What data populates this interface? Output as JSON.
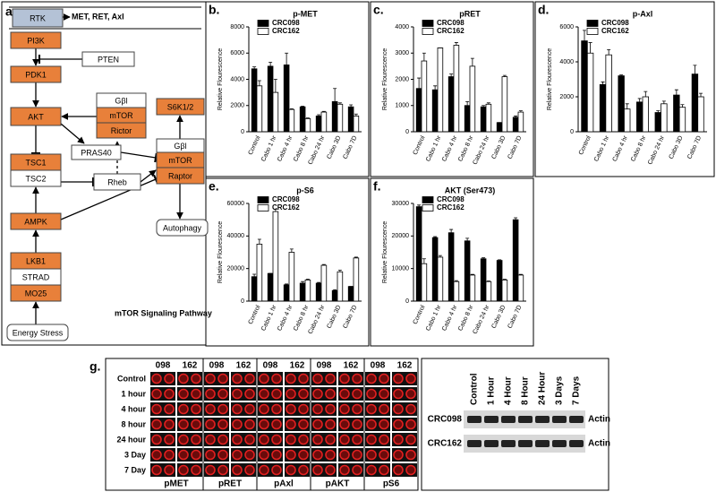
{
  "diagram": {
    "panel_label": "a.",
    "nodes": [
      "RTK",
      "MET, RET, Axl",
      "PI3K",
      "PTEN",
      "PDK1",
      "Gβl",
      "mTOR",
      "Rictor",
      "S6K1/2",
      "AKT",
      "PRAS40",
      "Gβl",
      "mTOR",
      "Raptor",
      "TSC1",
      "TSC2",
      "Rheb",
      "AMPK",
      "Autophagy",
      "LKB1",
      "STRAD",
      "MO25",
      "Energy Stress"
    ],
    "caption": "mTOR Signaling Pathway"
  },
  "chart_data": [
    {
      "type": "bar",
      "panel_label": "b.",
      "title": "p-MET",
      "y_label": "Relative Flourescence",
      "categories": [
        "Control",
        "Cabo 1 hr",
        "Cabo 4 hr",
        "Cabo 8 hr",
        "Cabo 24 hr",
        "Cabo 3D",
        "Cabo 7D"
      ],
      "series": [
        {
          "name": "CRC098",
          "color": "#000000",
          "values": [
            4800,
            5000,
            5100,
            1900,
            1200,
            2300,
            1900
          ],
          "errors": [
            150,
            300,
            900,
            50,
            100,
            1000,
            150
          ]
        },
        {
          "name": "CRC162",
          "color": "#ffffff",
          "values": [
            3500,
            3000,
            1700,
            1000,
            1500,
            2100,
            1200
          ],
          "errors": [
            400,
            1000,
            50,
            50,
            50,
            100,
            150
          ]
        }
      ],
      "ylim": [
        0,
        8000
      ],
      "yticks": [
        0,
        2000,
        4000,
        6000,
        8000
      ]
    },
    {
      "type": "bar",
      "panel_label": "c.",
      "title": "pRET",
      "y_label": "Relative Flourescence",
      "categories": [
        "Control",
        "Cabo 1 hr",
        "Cabo 4 hr",
        "Cabo 8 hr",
        "Cabo 24 hr",
        "Cabo 3D",
        "Cabo 7D"
      ],
      "series": [
        {
          "name": "CRC098",
          "color": "#000000",
          "values": [
            1650,
            1600,
            2100,
            1000,
            950,
            350,
            550
          ],
          "errors": [
            400,
            150,
            100,
            150,
            50,
            0,
            50
          ]
        },
        {
          "name": "CRC162",
          "color": "#ffffff",
          "values": [
            2700,
            3200,
            3300,
            2500,
            1050,
            2100,
            750
          ],
          "errors": [
            300,
            0,
            100,
            300,
            50,
            50,
            50
          ]
        }
      ],
      "ylim": [
        0,
        4000
      ],
      "yticks": [
        0,
        1000,
        2000,
        3000,
        4000
      ]
    },
    {
      "type": "bar",
      "panel_label": "d.",
      "title": "p-Axl",
      "y_label": "Relative Flourescence",
      "categories": [
        "Control",
        "Cabo 1 hr",
        "Cabo 4 hr",
        "Cabo 8 hr",
        "Cabo 24 hr",
        "Cabo 3D",
        "Cabo 7D"
      ],
      "series": [
        {
          "name": "CRC098",
          "color": "#000000",
          "values": [
            5200,
            2700,
            3200,
            1700,
            1100,
            2100,
            3300
          ],
          "errors": [
            600,
            150,
            50,
            200,
            100,
            300,
            500
          ]
        },
        {
          "name": "CRC162",
          "color": "#ffffff",
          "values": [
            4500,
            4400,
            1300,
            2000,
            1600,
            1400,
            2000
          ],
          "errors": [
            600,
            300,
            300,
            300,
            150,
            150,
            200
          ]
        }
      ],
      "ylim": [
        0,
        6000
      ],
      "yticks": [
        0,
        2000,
        4000,
        6000
      ]
    },
    {
      "type": "bar",
      "panel_label": "e.",
      "title": "p-S6",
      "y_label": "Relative Flourescence",
      "categories": [
        "Control",
        "Cabo 1 hr",
        "Cabo 4 hr",
        "Cabo 8 hr",
        "Cabo 24 hr",
        "Cabo 3D",
        "Cabo 7D"
      ],
      "series": [
        {
          "name": "CRC098",
          "color": "#000000",
          "values": [
            15000,
            17000,
            10000,
            11000,
            11000,
            6500,
            9000
          ],
          "errors": [
            1500,
            0,
            500,
            1000,
            500,
            500,
            0
          ]
        },
        {
          "name": "CRC162",
          "color": "#ffffff",
          "values": [
            35000,
            55000,
            30000,
            13000,
            22000,
            18000,
            26500
          ],
          "errors": [
            3000,
            1500,
            2000,
            500,
            500,
            1000,
            500
          ]
        }
      ],
      "ylim": [
        0,
        60000
      ],
      "yticks": [
        0,
        20000,
        40000,
        60000
      ]
    },
    {
      "type": "bar",
      "panel_label": "f.",
      "title": "AKT (Ser473)",
      "y_label": "Relative Flourescence",
      "categories": [
        "Control",
        "Cabo 1 hr",
        "Cabo 4 hr",
        "Cabo 8 hr",
        "Cabo 24 hr",
        "Cabo 3D",
        "Cabo 7D"
      ],
      "series": [
        {
          "name": "CRC098",
          "color": "#000000",
          "values": [
            29000,
            19500,
            21000,
            18500,
            13000,
            12500,
            25000
          ],
          "errors": [
            500,
            300,
            1000,
            800,
            300,
            200,
            600
          ]
        },
        {
          "name": "CRC162",
          "color": "#ffffff",
          "values": [
            11500,
            13500,
            6000,
            8000,
            6000,
            6500,
            8000
          ],
          "errors": [
            1500,
            500,
            300,
            200,
            200,
            200,
            200
          ]
        }
      ],
      "ylim": [
        0,
        30000
      ],
      "yticks": [
        0,
        10000,
        20000,
        30000
      ]
    }
  ],
  "array_panel": {
    "panel_label": "g.",
    "columns": [
      "098",
      "162",
      "098",
      "162",
      "098",
      "162",
      "098",
      "162",
      "098",
      "162"
    ],
    "rows": [
      "Control",
      "1 hour",
      "4 hour",
      "8 hour",
      "24 hour",
      "3 Day",
      "7 Day"
    ],
    "targets": [
      "pMET",
      "pRET",
      "pAxl",
      "pAKT",
      "pS6"
    ]
  },
  "blot": {
    "lanes": [
      "Control",
      "1 Hour",
      "4 Hour",
      "8 Hour",
      "24 Hour",
      "3 Days",
      "7 Days"
    ],
    "rows": [
      "CRC098",
      "CRC162"
    ],
    "loading_control": [
      "Actin",
      "Actin"
    ]
  }
}
